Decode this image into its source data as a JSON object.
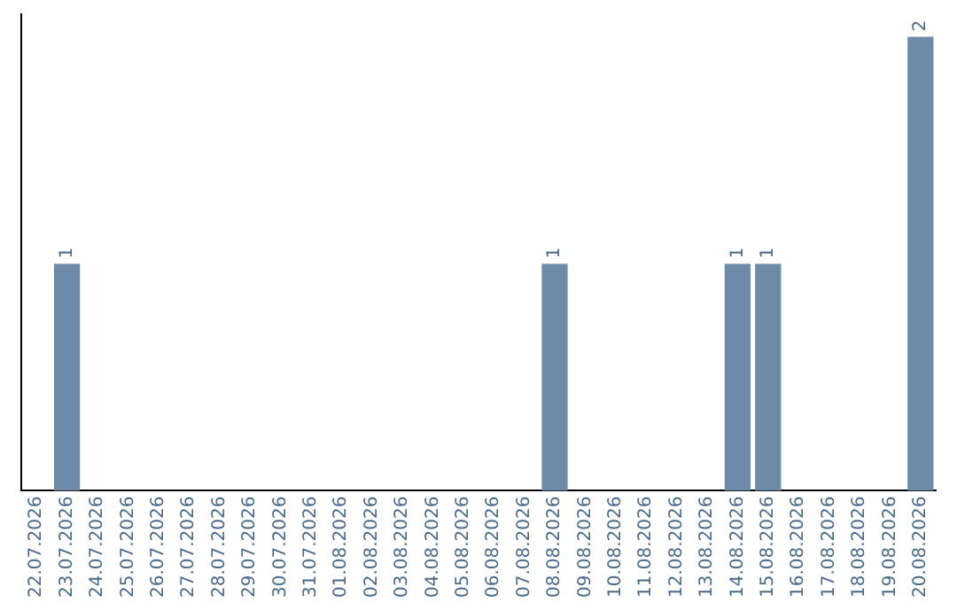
{
  "chart_data": {
    "type": "bar",
    "categories": [
      "22.07.2026",
      "23.07.2026",
      "24.07.2026",
      "25.07.2026",
      "26.07.2026",
      "27.07.2026",
      "28.07.2026",
      "29.07.2026",
      "30.07.2026",
      "31.07.2026",
      "01.08.2026",
      "02.08.2026",
      "03.08.2026",
      "04.08.2026",
      "05.08.2026",
      "06.08.2026",
      "07.08.2026",
      "08.08.2026",
      "09.08.2026",
      "10.08.2026",
      "11.08.2026",
      "12.08.2026",
      "13.08.2026",
      "14.08.2026",
      "15.08.2026",
      "16.08.2026",
      "17.08.2026",
      "18.08.2026",
      "19.08.2026",
      "20.08.2026"
    ],
    "values": [
      0,
      1,
      0,
      0,
      0,
      0,
      0,
      0,
      0,
      0,
      0,
      0,
      0,
      0,
      0,
      0,
      0,
      1,
      0,
      0,
      0,
      0,
      0,
      1,
      1,
      0,
      0,
      0,
      0,
      2
    ],
    "value_labels": [
      null,
      "1",
      null,
      null,
      null,
      null,
      null,
      null,
      null,
      null,
      null,
      null,
      null,
      null,
      null,
      null,
      null,
      "1",
      null,
      null,
      null,
      null,
      null,
      "1",
      "1",
      null,
      null,
      null,
      null,
      "2"
    ],
    "color": "#6d8aa8",
    "ylim": [
      0,
      2.1
    ],
    "grid": false,
    "legend": false,
    "tick_labels": "x"
  }
}
